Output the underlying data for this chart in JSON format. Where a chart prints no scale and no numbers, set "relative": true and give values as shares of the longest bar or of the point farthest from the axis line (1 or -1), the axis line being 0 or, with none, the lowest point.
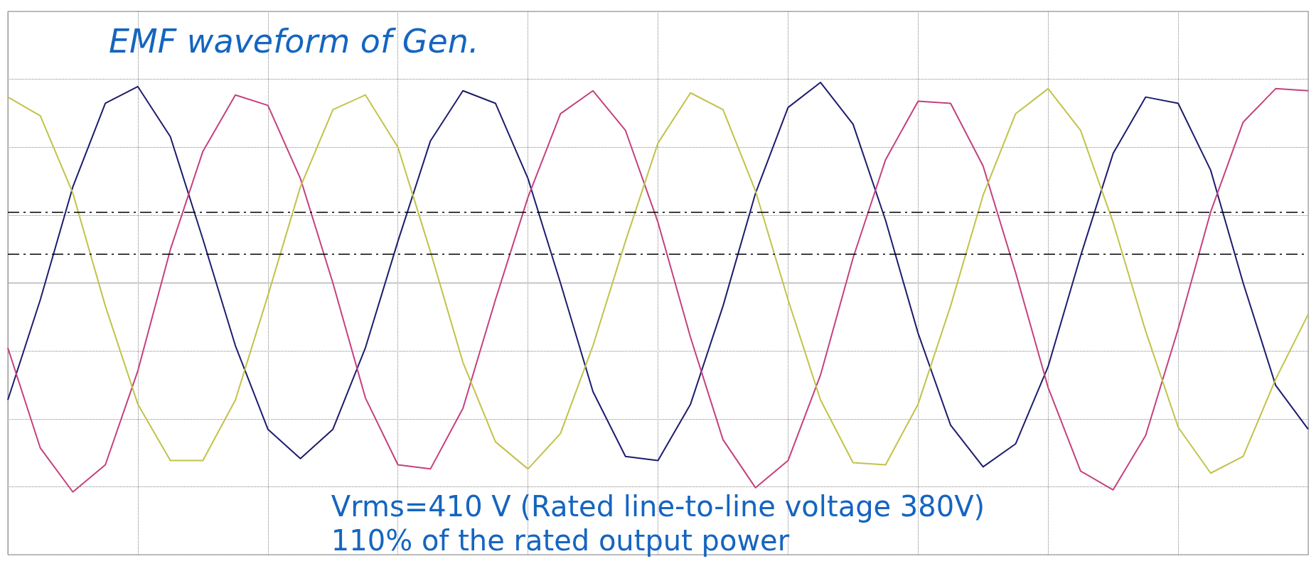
{
  "chart_data": {
    "type": "line",
    "title": "EMF waveform of Gen.",
    "relative": true,
    "grid": true,
    "marker": "none",
    "line_style": "solid",
    "categories": [
      null,
      null,
      null,
      null,
      null,
      null,
      null,
      null,
      null,
      null,
      null,
      null,
      null,
      null,
      null,
      null,
      null,
      null,
      null,
      null,
      null,
      null,
      null,
      null,
      null,
      null,
      null,
      null,
      null,
      null,
      null,
      null,
      null,
      null,
      null,
      null,
      null,
      null,
      null,
      null,
      null
    ],
    "series": [
      {
        "color": "#1c1c6e",
        "values": [
          -0.56,
          -0.08,
          0.46,
          0.86,
          0.94,
          0.7,
          0.21,
          -0.3,
          -0.7,
          -0.84,
          -0.7,
          -0.31,
          0.2,
          0.68,
          0.92,
          0.86,
          0.5,
          0,
          -0.52,
          -0.83,
          -0.85,
          -0.58,
          -0.11,
          0.43,
          0.84,
          0.96,
          0.76,
          0.3,
          -0.24,
          -0.68,
          -0.88,
          -0.77,
          -0.4,
          0.13,
          0.62,
          0.89,
          0.86,
          0.54,
          0,
          -0.49,
          -0.7
        ]
      },
      {
        "color": "#c4407e",
        "values": [
          -0.31,
          -0.79,
          -1,
          -0.87,
          -0.42,
          0.16,
          0.63,
          0.9,
          0.85,
          0.5,
          0,
          -0.55,
          -0.87,
          -0.89,
          -0.6,
          -0.08,
          0.41,
          0.81,
          0.92,
          0.73,
          0.29,
          -0.26,
          -0.75,
          -0.98,
          -0.85,
          -0.44,
          0.12,
          0.59,
          0.87,
          0.86,
          0.56,
          0.05,
          -0.5,
          -0.9,
          -0.99,
          -0.73,
          -0.22,
          0.34,
          0.77,
          0.93,
          0.92
        ]
      },
      {
        "color": "#c2c24a",
        "values": [
          0.89,
          0.8,
          0.43,
          -0.11,
          -0.58,
          -0.85,
          -0.85,
          -0.56,
          -0.06,
          0.46,
          0.83,
          0.9,
          0.65,
          0.15,
          -0.38,
          -0.76,
          -0.89,
          -0.72,
          -0.3,
          0.2,
          0.67,
          0.91,
          0.83,
          0.44,
          -0.08,
          -0.56,
          -0.86,
          -0.87,
          -0.58,
          -0.11,
          0.42,
          0.81,
          0.93,
          0.73,
          0.29,
          -0.23,
          -0.69,
          -0.91,
          -0.83,
          -0.46,
          -0.15
        ]
      }
    ],
    "ref_lines": [
      {
        "axis": "y",
        "value": 0.34,
        "color": "#000000",
        "line_style": "dashed"
      },
      {
        "axis": "y",
        "value": 0.14,
        "color": "#000000",
        "line_style": "dashed"
      }
    ],
    "annotations": [
      "Vrms=410 V (Rated line-to-line voltage 380V)",
      "110% of the rated output power"
    ]
  }
}
